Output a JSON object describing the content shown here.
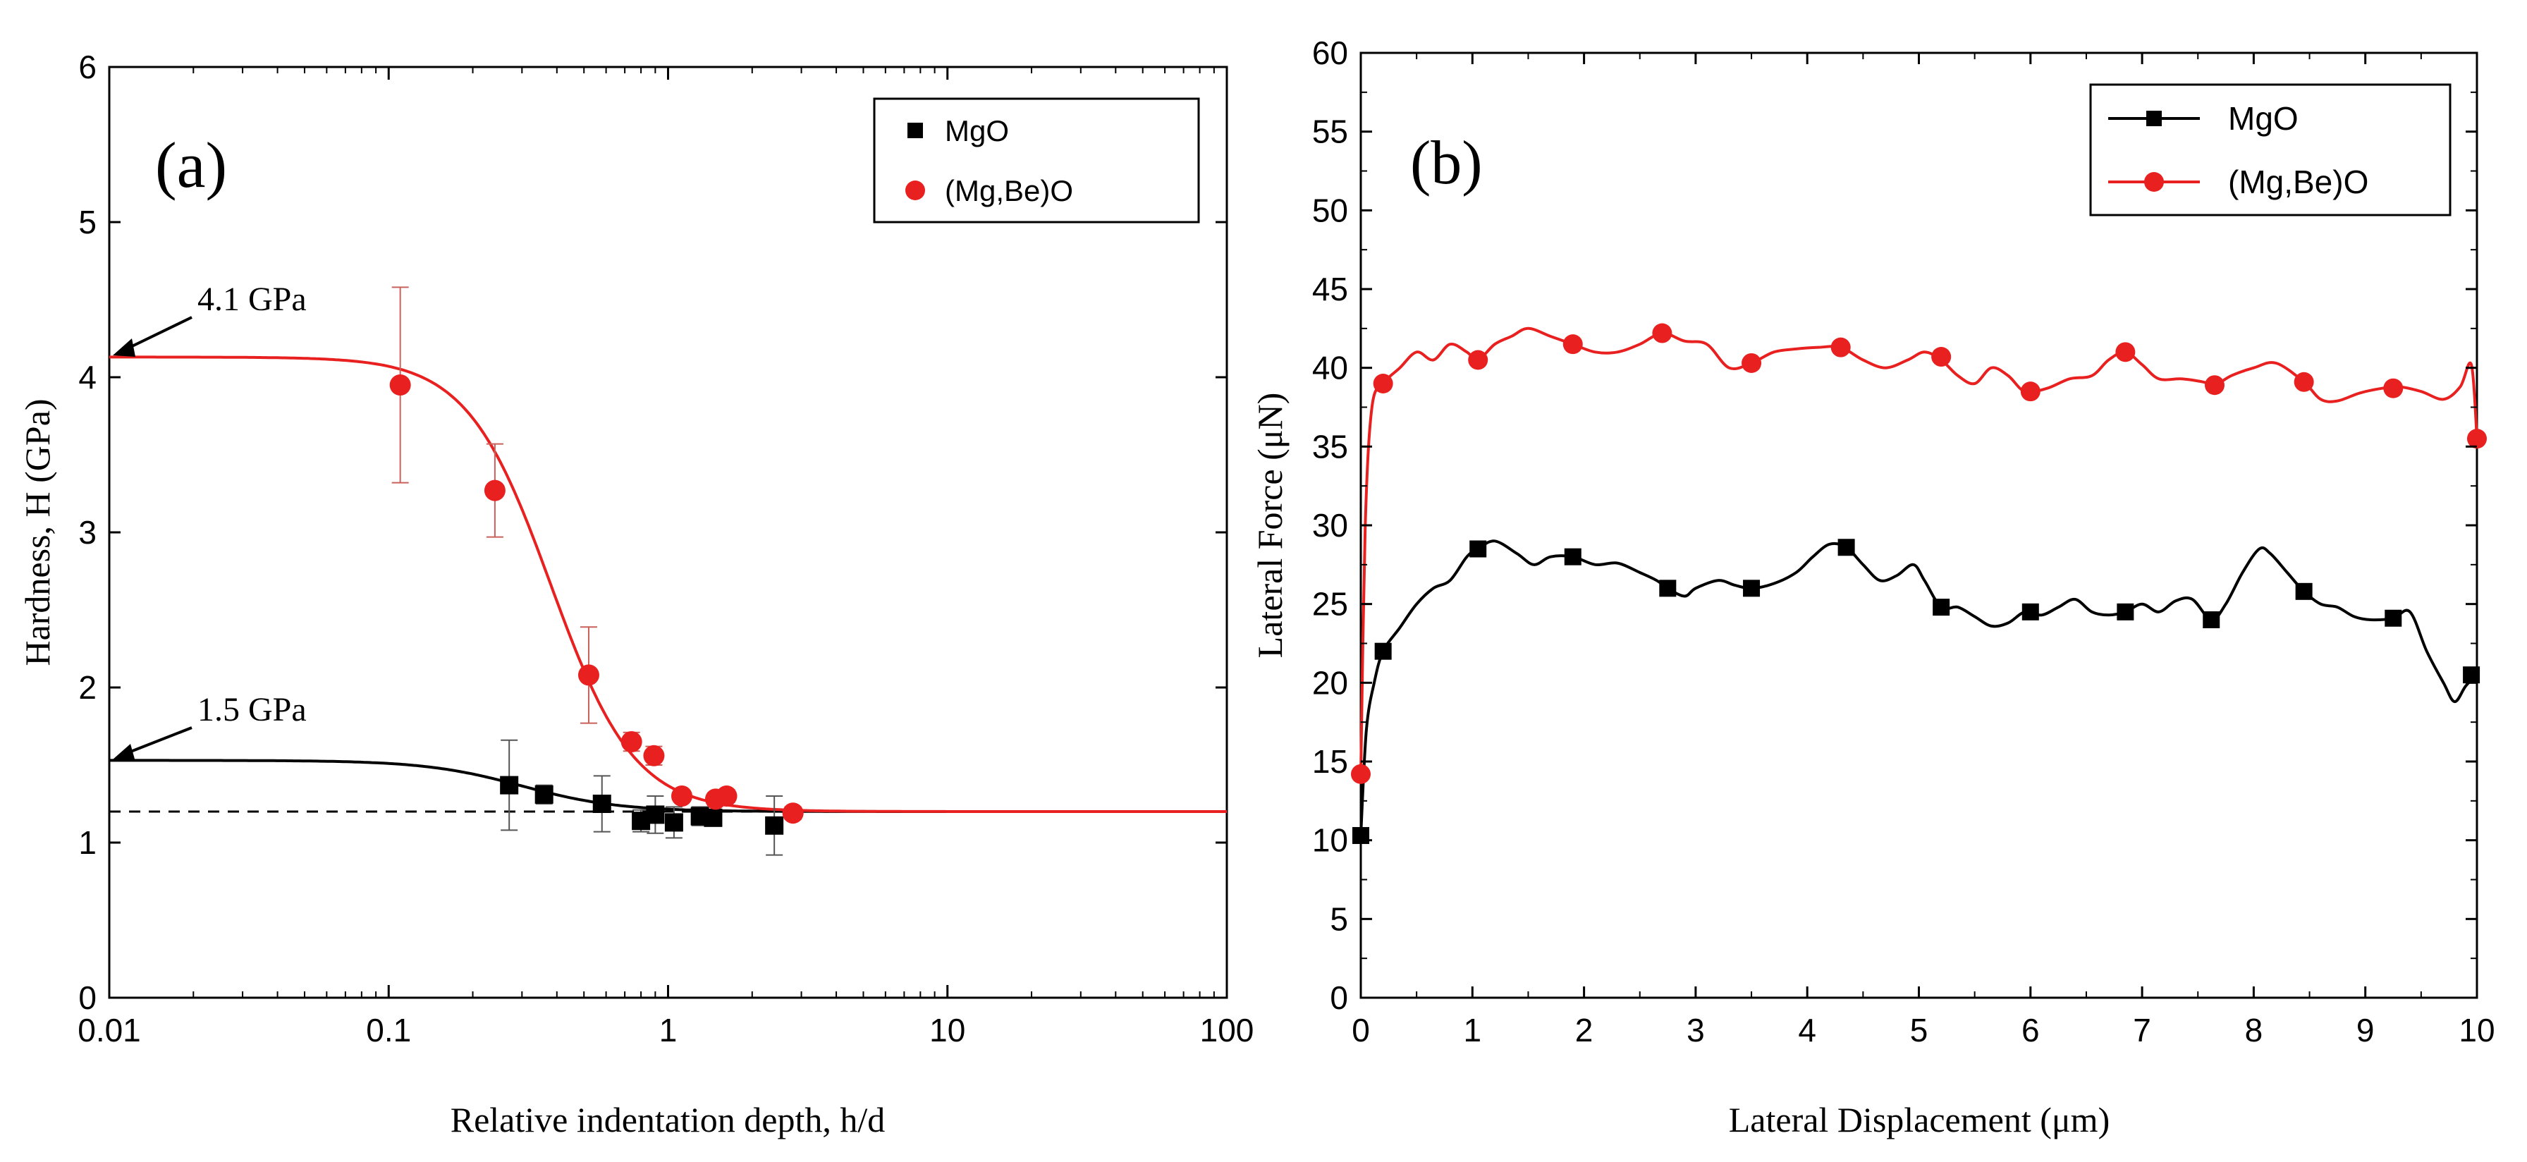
{
  "chart_data": [
    {
      "id": "a",
      "type": "scatter",
      "panel_label": "(a)",
      "xlabel": "Relative indentation depth, h/d",
      "ylabel": "Hardness, H (GPa)",
      "xscale": "log",
      "xlim": [
        0.01,
        100
      ],
      "ylim": [
        0,
        6
      ],
      "xticks": [
        0.01,
        0.1,
        1,
        10,
        100
      ],
      "xtick_labels": [
        "0.01",
        "0.1",
        "1",
        "10",
        "100"
      ],
      "yticks": [
        0,
        1,
        2,
        3,
        4,
        5,
        6
      ],
      "ytick_labels": [
        "0",
        "1",
        "2",
        "3",
        "4",
        "5",
        "6"
      ],
      "legend_position": "top-right",
      "reference_line": {
        "y": 1.2,
        "style": "dashed"
      },
      "annotations": [
        {
          "text": "4.1 GPa",
          "target_x": 0.01,
          "target_y": 4.15
        },
        {
          "text": "1.5 GPa",
          "target_x": 0.01,
          "target_y": 1.53
        }
      ],
      "series": [
        {
          "name": "MgO",
          "color": "#000000",
          "marker": "square",
          "points": [
            {
              "x": 0.27,
              "y": 1.37,
              "err": 0.29
            },
            {
              "x": 0.36,
              "y": 1.31,
              "err": 0.06
            },
            {
              "x": 0.58,
              "y": 1.25,
              "err": 0.18
            },
            {
              "x": 0.8,
              "y": 1.14,
              "err": 0.07
            },
            {
              "x": 0.9,
              "y": 1.18,
              "err": 0.12
            },
            {
              "x": 1.05,
              "y": 1.13,
              "err": 0.1
            },
            {
              "x": 1.3,
              "y": 1.17,
              "err": 0.06
            },
            {
              "x": 1.45,
              "y": 1.16,
              "err": 0.05
            },
            {
              "x": 2.4,
              "y": 1.11,
              "err": 0.19
            }
          ],
          "fit": {
            "plateau": 1.53,
            "floor": 1.2,
            "x0": 0.3,
            "slope": 2.5
          }
        },
        {
          "name": "(Mg,Be)O",
          "color": "#e8201f",
          "marker": "circle",
          "points": [
            {
              "x": 0.11,
              "y": 3.95,
              "err": 0.63
            },
            {
              "x": 0.24,
              "y": 3.27,
              "err": 0.3
            },
            {
              "x": 0.52,
              "y": 2.08,
              "err": 0.31
            },
            {
              "x": 0.74,
              "y": 1.65,
              "err": 0.06
            },
            {
              "x": 0.89,
              "y": 1.56,
              "err": 0.06
            },
            {
              "x": 1.12,
              "y": 1.3,
              "err": 0.03
            },
            {
              "x": 1.48,
              "y": 1.28,
              "err": 0.04
            },
            {
              "x": 1.62,
              "y": 1.3,
              "err": 0.04
            },
            {
              "x": 2.8,
              "y": 1.19,
              "err": 0.04
            }
          ],
          "fit": {
            "plateau": 4.13,
            "floor": 1.2,
            "x0": 0.38,
            "slope": 2.9
          }
        }
      ]
    },
    {
      "id": "b",
      "type": "line",
      "panel_label": "(b)",
      "xlabel": "Lateral Displacement (μm)",
      "ylabel": "Lateral Force (μN)",
      "xlim": [
        0,
        10
      ],
      "ylim": [
        0,
        60
      ],
      "xticks": [
        0,
        1,
        2,
        3,
        4,
        5,
        6,
        7,
        8,
        9,
        10
      ],
      "xtick_labels": [
        "0",
        "1",
        "2",
        "3",
        "4",
        "5",
        "6",
        "7",
        "8",
        "9",
        "10"
      ],
      "yticks": [
        0,
        5,
        10,
        15,
        20,
        25,
        30,
        35,
        40,
        45,
        50,
        55,
        60
      ],
      "ytick_labels": [
        "0",
        "5",
        "10",
        "15",
        "20",
        "25",
        "30",
        "35",
        "40",
        "45",
        "50",
        "55",
        "60"
      ],
      "legend_position": "top-right",
      "series": [
        {
          "name": "MgO",
          "color": "#000000",
          "marker": "square",
          "line": [
            [
              0,
              10.3
            ],
            [
              0.05,
              17
            ],
            [
              0.12,
              20
            ],
            [
              0.2,
              22
            ],
            [
              0.35,
              23.5
            ],
            [
              0.5,
              25
            ],
            [
              0.65,
              26
            ],
            [
              0.8,
              26.5
            ],
            [
              0.95,
              28
            ],
            [
              1.05,
              28.5
            ],
            [
              1.2,
              29
            ],
            [
              1.4,
              28.2
            ],
            [
              1.55,
              27.5
            ],
            [
              1.7,
              28
            ],
            [
              1.9,
              28
            ],
            [
              2.1,
              27.5
            ],
            [
              2.3,
              27.6
            ],
            [
              2.5,
              27
            ],
            [
              2.65,
              26.5
            ],
            [
              2.75,
              26
            ],
            [
              2.9,
              25.5
            ],
            [
              3.0,
              26
            ],
            [
              3.2,
              26.5
            ],
            [
              3.35,
              26.2
            ],
            [
              3.5,
              26
            ],
            [
              3.7,
              26.3
            ],
            [
              3.9,
              27
            ],
            [
              4.05,
              28
            ],
            [
              4.2,
              28.8
            ],
            [
              4.35,
              28.6
            ],
            [
              4.5,
              27.5
            ],
            [
              4.65,
              26.5
            ],
            [
              4.8,
              26.8
            ],
            [
              4.95,
              27.5
            ],
            [
              5.05,
              26.5
            ],
            [
              5.2,
              24.8
            ],
            [
              5.35,
              24.8
            ],
            [
              5.5,
              24.2
            ],
            [
              5.65,
              23.6
            ],
            [
              5.8,
              23.8
            ],
            [
              5.95,
              24.5
            ],
            [
              6.1,
              24.3
            ],
            [
              6.25,
              24.8
            ],
            [
              6.4,
              25.3
            ],
            [
              6.55,
              24.5
            ],
            [
              6.7,
              24.3
            ],
            [
              6.85,
              24.5
            ],
            [
              7.0,
              25
            ],
            [
              7.15,
              24.5
            ],
            [
              7.3,
              25.2
            ],
            [
              7.45,
              25.3
            ],
            [
              7.62,
              24
            ],
            [
              7.75,
              25
            ],
            [
              7.9,
              27
            ],
            [
              8.05,
              28.5
            ],
            [
              8.15,
              28.2
            ],
            [
              8.3,
              27
            ],
            [
              8.45,
              25.8
            ],
            [
              8.6,
              25
            ],
            [
              8.75,
              24.8
            ],
            [
              8.9,
              24.2
            ],
            [
              9.05,
              24
            ],
            [
              9.25,
              24.1
            ],
            [
              9.4,
              24.5
            ],
            [
              9.55,
              22
            ],
            [
              9.7,
              20
            ],
            [
              9.8,
              18.8
            ],
            [
              9.9,
              19.8
            ],
            [
              10.0,
              20.5
            ]
          ],
          "markers": [
            [
              0,
              10.3
            ],
            [
              0.2,
              22
            ],
            [
              1.05,
              28.5
            ],
            [
              1.9,
              28
            ],
            [
              2.75,
              26
            ],
            [
              3.5,
              26
            ],
            [
              4.35,
              28.6
            ],
            [
              5.2,
              24.8
            ],
            [
              6.0,
              24.5
            ],
            [
              6.85,
              24.5
            ],
            [
              7.62,
              24
            ],
            [
              8.45,
              25.8
            ],
            [
              9.25,
              24.1
            ],
            [
              9.95,
              20.5
            ]
          ]
        },
        {
          "name": "(Mg,Be)O",
          "color": "#e8201f",
          "marker": "circle",
          "line": [
            [
              0,
              14.2
            ],
            [
              0.04,
              30
            ],
            [
              0.1,
              37.5
            ],
            [
              0.2,
              39
            ],
            [
              0.35,
              40
            ],
            [
              0.5,
              41
            ],
            [
              0.65,
              40.5
            ],
            [
              0.8,
              41.5
            ],
            [
              0.95,
              41
            ],
            [
              1.05,
              40.5
            ],
            [
              1.2,
              41.5
            ],
            [
              1.35,
              42
            ],
            [
              1.5,
              42.5
            ],
            [
              1.7,
              42
            ],
            [
              1.9,
              41.5
            ],
            [
              2.1,
              41
            ],
            [
              2.3,
              41
            ],
            [
              2.5,
              41.5
            ],
            [
              2.7,
              42.2
            ],
            [
              2.9,
              41.7
            ],
            [
              3.1,
              41.5
            ],
            [
              3.3,
              40
            ],
            [
              3.5,
              40.3
            ],
            [
              3.7,
              41
            ],
            [
              3.9,
              41.2
            ],
            [
              4.1,
              41.3
            ],
            [
              4.3,
              41.3
            ],
            [
              4.5,
              40.5
            ],
            [
              4.7,
              40
            ],
            [
              4.9,
              40.5
            ],
            [
              5.05,
              41
            ],
            [
              5.2,
              40.5
            ],
            [
              5.35,
              39.5
            ],
            [
              5.5,
              39
            ],
            [
              5.65,
              40
            ],
            [
              5.8,
              39.5
            ],
            [
              5.95,
              38.5
            ],
            [
              6.15,
              38.7
            ],
            [
              6.35,
              39.3
            ],
            [
              6.55,
              39.5
            ],
            [
              6.7,
              40.5
            ],
            [
              6.85,
              41
            ],
            [
              7.0,
              40.2
            ],
            [
              7.15,
              39.3
            ],
            [
              7.35,
              39.3
            ],
            [
              7.55,
              39.1
            ],
            [
              7.65,
              38.9
            ],
            [
              7.8,
              39.5
            ],
            [
              8.0,
              40
            ],
            [
              8.2,
              40.3
            ],
            [
              8.45,
              39.1
            ],
            [
              8.6,
              38
            ],
            [
              8.75,
              37.9
            ],
            [
              8.95,
              38.4
            ],
            [
              9.15,
              38.7
            ],
            [
              9.3,
              38.8
            ],
            [
              9.5,
              38.5
            ],
            [
              9.7,
              38
            ],
            [
              9.85,
              38.8
            ],
            [
              9.95,
              40.2
            ],
            [
              10.0,
              35.5
            ]
          ],
          "markers": [
            [
              0,
              14.2
            ],
            [
              0.2,
              39
            ],
            [
              1.05,
              40.5
            ],
            [
              1.9,
              41.5
            ],
            [
              2.7,
              42.2
            ],
            [
              3.5,
              40.3
            ],
            [
              4.3,
              41.3
            ],
            [
              5.2,
              40.7
            ],
            [
              6.0,
              38.5
            ],
            [
              6.85,
              41
            ],
            [
              7.65,
              38.9
            ],
            [
              8.45,
              39.1
            ],
            [
              9.25,
              38.7
            ],
            [
              10.0,
              35.5
            ]
          ]
        }
      ]
    }
  ]
}
